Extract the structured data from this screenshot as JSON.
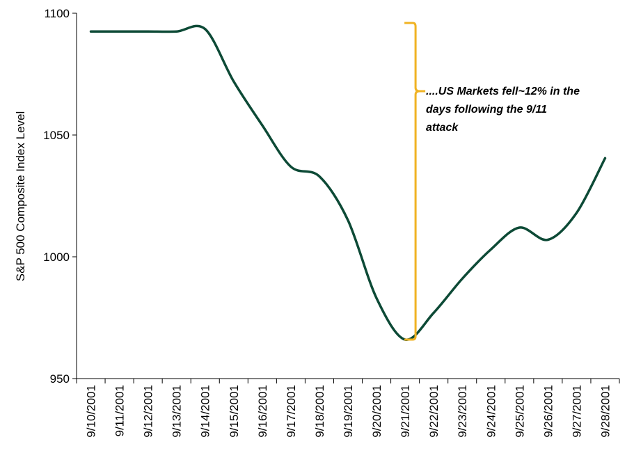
{
  "chart_data": {
    "type": "line",
    "title": "",
    "xlabel": "",
    "ylabel": "S&P 500 Composite Index Level",
    "ylim": [
      950,
      1100
    ],
    "yticks": [
      "950",
      "1000",
      "1050",
      "1100"
    ],
    "categories": [
      "9/10/2001",
      "9/11/2001",
      "9/12/2001",
      "9/13/2001",
      "9/14/2001",
      "9/15/2001",
      "9/16/2001",
      "9/17/2001",
      "9/18/2001",
      "9/19/2001",
      "9/20/2001",
      "9/21/2001",
      "9/22/2001",
      "9/23/2001",
      "9/24/2001",
      "9/25/2001",
      "9/26/2001",
      "9/27/2001",
      "9/28/2001"
    ],
    "series": [
      {
        "values": [
          1092.5,
          1092.5,
          1092.5,
          1092.5,
          1093.5,
          1072,
          1054,
          1037,
          1033,
          1015,
          983,
          966,
          977,
          991,
          1003,
          1012,
          1007,
          1018,
          1040.5
        ],
        "color": "#0d4a36"
      }
    ],
    "grid": false,
    "legend": "none",
    "annotation": {
      "lines": [
        "....US Markets  fell~12% in the",
        "days following the 9/11",
        "attack"
      ],
      "bracket_from": 1096,
      "bracket_to": 966,
      "bracket_category": "9/21/2001",
      "color": "#f0b323"
    }
  }
}
